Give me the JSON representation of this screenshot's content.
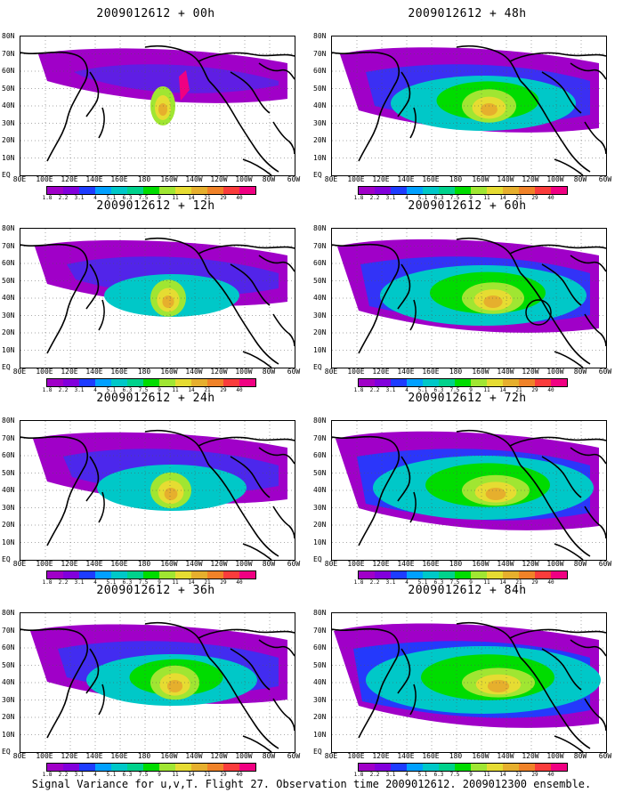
{
  "panels": [
    {
      "title": "2009012612 + 00h",
      "intensity": 0.0,
      "highlight": true
    },
    {
      "title": "2009012612 + 48h",
      "intensity": 0.55,
      "highlight": false
    },
    {
      "title": "2009012612 + 12h",
      "intensity": 0.2,
      "highlight": false
    },
    {
      "title": "2009012612 + 60h",
      "intensity": 0.7,
      "highlight": false,
      "circle": true
    },
    {
      "title": "2009012612 + 24h",
      "intensity": 0.3,
      "highlight": false
    },
    {
      "title": "2009012612 + 72h",
      "intensity": 0.8,
      "highlight": false
    },
    {
      "title": "2009012612 + 36h",
      "intensity": 0.45,
      "highlight": false
    },
    {
      "title": "2009012612 + 84h",
      "intensity": 0.9,
      "highlight": false
    }
  ],
  "lat_labels": [
    "80N",
    "70N",
    "60N",
    "50N",
    "40N",
    "30N",
    "20N",
    "10N",
    "EQ"
  ],
  "lon_labels": [
    "80E",
    "100E",
    "120E",
    "140E",
    "160E",
    "180",
    "160W",
    "140W",
    "120W",
    "100W",
    "80W",
    "60W"
  ],
  "colorbar_labels": [
    "1.8",
    "2.2",
    "3.1",
    "4",
    "5.1",
    "6.3",
    "7.5",
    "9",
    "11",
    "14",
    "21",
    "29",
    "40"
  ],
  "colorbar_colors": [
    "#a000c8",
    "#8200dc",
    "#1e3cff",
    "#00a0ff",
    "#00c8c8",
    "#00d28c",
    "#00dc00",
    "#a0e632",
    "#e6dc32",
    "#e6af2d",
    "#f08228",
    "#fa3c3c",
    "#f00082"
  ],
  "caption": "Signal Variance for u,v,T. Flight 27. Observation time 2009012612. 2009012300 ensemble."
}
